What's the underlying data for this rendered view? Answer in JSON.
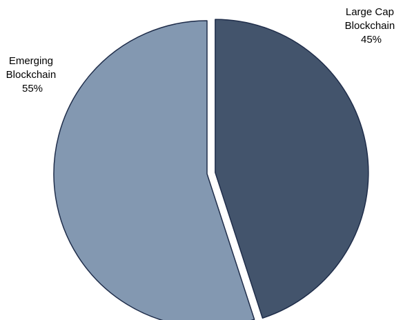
{
  "chart_data": {
    "type": "pie",
    "title": "",
    "slices": [
      {
        "label_lines": [
          "Large Cap",
          "Blockchain"
        ],
        "value": 45,
        "value_label": "45%",
        "color": "#43546C",
        "exploded": true
      },
      {
        "label_lines": [
          "Emerging",
          "Blockchain"
        ],
        "value": 55,
        "value_label": "55%",
        "color": "#8398B1",
        "exploded": false
      }
    ],
    "start_angle_deg": 0,
    "direction": "clockwise",
    "legend": "none",
    "edge_color": "#1F2D4A"
  }
}
